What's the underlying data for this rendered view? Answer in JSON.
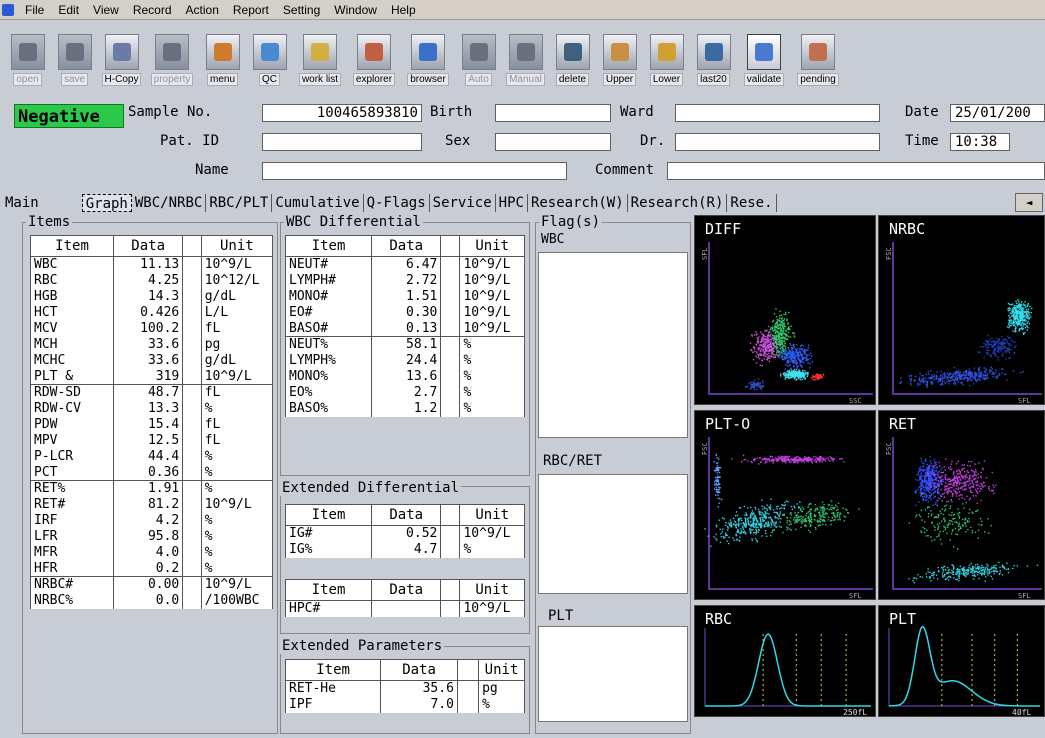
{
  "menu": [
    "File",
    "Edit",
    "View",
    "Record",
    "Action",
    "Report",
    "Setting",
    "Window",
    "Help"
  ],
  "toolbar": [
    {
      "label": "open",
      "state": "disabled",
      "icon": "open-icon"
    },
    {
      "label": "save",
      "state": "disabled",
      "icon": "save-icon"
    },
    {
      "label": "H-Copy",
      "state": "normal",
      "icon": "printer-icon"
    },
    {
      "label": "property",
      "state": "disabled",
      "icon": "property-icon"
    },
    {
      "label": "menu",
      "state": "normal",
      "icon": "menu-icon"
    },
    {
      "label": "QC",
      "state": "normal",
      "icon": "qc-icon"
    },
    {
      "label": "work list",
      "state": "normal",
      "icon": "worklist-icon"
    },
    {
      "label": "explorer",
      "state": "normal",
      "icon": "explorer-icon"
    },
    {
      "label": "browser",
      "state": "normal",
      "icon": "browser-icon"
    },
    {
      "label": "Auto",
      "state": "disabled",
      "icon": "auto-icon"
    },
    {
      "label": "Manual",
      "state": "disabled",
      "icon": "manual-icon"
    },
    {
      "label": "delete",
      "state": "normal",
      "icon": "delete-icon"
    },
    {
      "label": "Upper",
      "state": "normal",
      "icon": "upper-icon"
    },
    {
      "label": "Lower",
      "state": "normal",
      "icon": "lower-icon"
    },
    {
      "label": "last20",
      "state": "normal",
      "icon": "last20-icon"
    },
    {
      "label": "validate",
      "state": "selected",
      "icon": "validate-icon"
    },
    {
      "label": "pending",
      "state": "normal",
      "icon": "pending-icon"
    }
  ],
  "header": {
    "status": "Negative",
    "sample_label": "Sample No.",
    "sample_value": "100465893810",
    "birth_label": "Birth",
    "birth_value": "",
    "ward_label": "Ward",
    "ward_value": "",
    "date_label": "Date",
    "date_value": "25/01/200",
    "patid_label": "Pat. ID",
    "patid_value": "",
    "sex_label": "Sex",
    "sex_value": "",
    "dr_label": "Dr.",
    "dr_value": "",
    "time_label": "Time",
    "time_value": "10:38",
    "name_label": "Name",
    "name_value": "",
    "comment_label": "Comment",
    "comment_value": ""
  },
  "tabs": [
    "Main",
    "Graph",
    "WBC/NRBC",
    "RBC/PLT",
    "Cumulative",
    "Q-Flags",
    "Service",
    "HPC",
    "Research(W)",
    "Research(R)",
    "Rese."
  ],
  "tab_nav": "◄",
  "items": {
    "title": "Items",
    "headers": [
      "Item",
      "Data",
      "Unit"
    ],
    "rows": [
      [
        "WBC",
        "11.13",
        "10^9/L"
      ],
      [
        "RBC",
        "4.25",
        "10^12/L"
      ],
      [
        "HGB",
        "14.3",
        "g/dL"
      ],
      [
        "HCT",
        "0.426",
        "L/L"
      ],
      [
        "MCV",
        "100.2",
        "fL"
      ],
      [
        "MCH",
        "33.6",
        "pg"
      ],
      [
        "MCHC",
        "33.6",
        "g/dL"
      ],
      [
        "PLT &",
        "319",
        "10^9/L"
      ],
      [
        "RDW-SD",
        "48.7",
        "fL"
      ],
      [
        "RDW-CV",
        "13.3",
        "%"
      ],
      [
        "PDW",
        "15.4",
        "fL"
      ],
      [
        "MPV",
        "12.5",
        "fL"
      ],
      [
        "P-LCR",
        "44.4",
        "%"
      ],
      [
        "PCT",
        "0.36",
        "%"
      ],
      [
        "RET%",
        "1.91",
        "%"
      ],
      [
        "RET#",
        "81.2",
        "10^9/L"
      ],
      [
        "IRF",
        "4.2",
        "%"
      ],
      [
        "LFR",
        "95.8",
        "%"
      ],
      [
        "MFR",
        "4.0",
        "%"
      ],
      [
        "HFR",
        "0.2",
        "%"
      ],
      [
        "NRBC#",
        "0.00",
        "10^9/L"
      ],
      [
        "NRBC%",
        "0.0",
        "/100WBC"
      ]
    ]
  },
  "wbc_diff": {
    "title": "WBC Differential",
    "headers": [
      "Item",
      "Data",
      "Unit"
    ],
    "rows": [
      [
        "NEUT#",
        "6.47",
        "10^9/L"
      ],
      [
        "LYMPH#",
        "2.72",
        "10^9/L"
      ],
      [
        "MONO#",
        "1.51",
        "10^9/L"
      ],
      [
        "EO#",
        "0.30",
        "10^9/L"
      ],
      [
        "BASO#",
        "0.13",
        "10^9/L"
      ],
      [
        "NEUT%",
        "58.1",
        "%"
      ],
      [
        "LYMPH%",
        "24.4",
        "%"
      ],
      [
        "MONO%",
        "13.6",
        "%"
      ],
      [
        "EO%",
        "2.7",
        "%"
      ],
      [
        "BASO%",
        "1.2",
        "%"
      ]
    ]
  },
  "ext_diff": {
    "title": "Extended Differential",
    "headers": [
      "Item",
      "Data",
      "Unit"
    ],
    "rows": [
      [
        "IG#",
        "0.52",
        "10^9/L"
      ],
      [
        "IG%",
        "4.7",
        "%"
      ]
    ],
    "headers2": [
      "Item",
      "Data",
      "Unit"
    ],
    "rows2": [
      [
        "HPC#",
        "",
        "10^9/L"
      ]
    ]
  },
  "ext_params": {
    "title": "Extended Parameters",
    "headers": [
      "Item",
      "Data",
      "Unit"
    ],
    "rows": [
      [
        "RET-He",
        "35.6",
        "pg"
      ],
      [
        "IPF",
        "7.0",
        "%"
      ]
    ]
  },
  "flags": {
    "title": "Flag(s)",
    "wbc": "WBC",
    "rbc": "RBC/RET",
    "plt": "PLT"
  },
  "plots": {
    "diff": {
      "title": "DIFF",
      "xlabel": "SSC",
      "ylabel": "SFL"
    },
    "nrbc": {
      "title": "NRBC",
      "xlabel": "SFL",
      "ylabel": "FSC"
    },
    "plto": {
      "title": "PLT-O",
      "xlabel": "SFL",
      "ylabel": "FSC"
    },
    "ret": {
      "title": "RET",
      "xlabel": "SFL",
      "ylabel": "FSC"
    },
    "rbc": {
      "title": "RBC",
      "xlabel": "250fL"
    },
    "plt": {
      "title": "PLT",
      "xlabel": "40fL"
    }
  },
  "colors": {
    "negative": "#2cc84a",
    "plot_bg": "#000000",
    "axis": "#7a4bd0",
    "curve": "#30d8e8"
  }
}
